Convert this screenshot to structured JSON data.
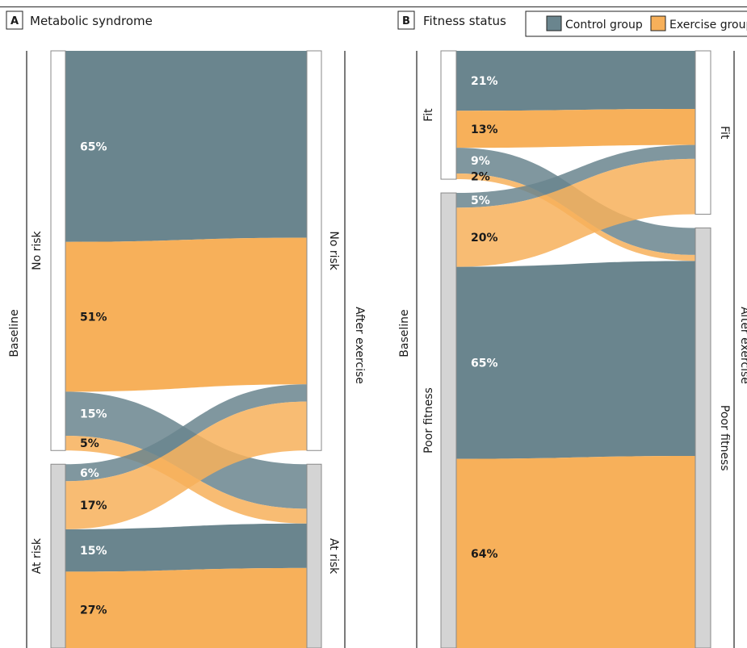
{
  "legend": {
    "control": "Control group",
    "exercise": "Exercise group"
  },
  "colors": {
    "control": "#6a858e",
    "exercise": "#f7b05a",
    "stay_bar": "#ffffff",
    "risk_bar": "#d4d4d4",
    "bar_stroke": "#8a8a8a",
    "text_dark": "#1a1a1a",
    "text_light": "#ffffff"
  },
  "chart_data": [
    {
      "type": "sankey",
      "panel_letter": "A",
      "title": "Metabolic syndrome",
      "left_axis_label": "Baseline",
      "right_axis_label": "After exercise",
      "left_nodes": [
        {
          "name": "No risk",
          "share": 0.685
        },
        {
          "name": "At risk",
          "share": 0.315
        }
      ],
      "right_nodes": [
        {
          "name": "No risk",
          "share": 0.685
        },
        {
          "name": "At risk",
          "share": 0.315
        }
      ],
      "flows": [
        {
          "group": "control",
          "from": "No risk",
          "to": "No risk",
          "value": 65,
          "label": "65%"
        },
        {
          "group": "exercise",
          "from": "No risk",
          "to": "No risk",
          "value": 51,
          "label": "51%"
        },
        {
          "group": "control",
          "from": "No risk",
          "to": "At risk",
          "value": 15,
          "label": "15%"
        },
        {
          "group": "exercise",
          "from": "No risk",
          "to": "At risk",
          "value": 5,
          "label": "5%"
        },
        {
          "group": "control",
          "from": "At risk",
          "to": "No risk",
          "value": 6,
          "label": "6%"
        },
        {
          "group": "exercise",
          "from": "At risk",
          "to": "No risk",
          "value": 17,
          "label": "17%"
        },
        {
          "group": "control",
          "from": "At risk",
          "to": "At risk",
          "value": 15,
          "label": "15%"
        },
        {
          "group": "exercise",
          "from": "At risk",
          "to": "At risk",
          "value": 27,
          "label": "27%"
        }
      ]
    },
    {
      "type": "sankey",
      "panel_letter": "B",
      "title": "Fitness status",
      "left_axis_label": "Baseline",
      "right_axis_label": "After exercise",
      "left_nodes": [
        {
          "name": "Fit",
          "share": 0.22
        },
        {
          "name": "Poor fitness",
          "share": 0.78
        }
      ],
      "right_nodes": [
        {
          "name": "Fit",
          "share": 0.28
        },
        {
          "name": "Poor fitness",
          "share": 0.72
        }
      ],
      "flows": [
        {
          "group": "control",
          "from": "Fit",
          "to": "Fit",
          "value": 21,
          "label": "21%"
        },
        {
          "group": "exercise",
          "from": "Fit",
          "to": "Fit",
          "value": 13,
          "label": "13%"
        },
        {
          "group": "control",
          "from": "Fit",
          "to": "Poor fitness",
          "value": 9,
          "label": "9%"
        },
        {
          "group": "exercise",
          "from": "Fit",
          "to": "Poor fitness",
          "value": 2,
          "label": "2%"
        },
        {
          "group": "control",
          "from": "Poor fitness",
          "to": "Fit",
          "value": 5,
          "label": "5%"
        },
        {
          "group": "exercise",
          "from": "Poor fitness",
          "to": "Fit",
          "value": 20,
          "label": "20%"
        },
        {
          "group": "control",
          "from": "Poor fitness",
          "to": "Poor fitness",
          "value": 65,
          "label": "65%"
        },
        {
          "group": "exercise",
          "from": "Poor fitness",
          "to": "Poor fitness",
          "value": 64,
          "label": "64%"
        }
      ]
    }
  ]
}
